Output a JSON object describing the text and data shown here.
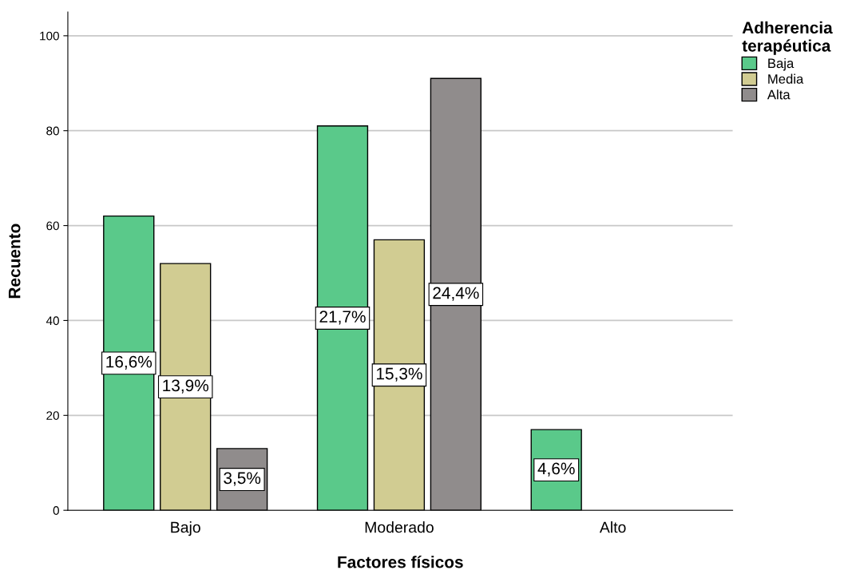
{
  "chart_data": {
    "type": "bar",
    "xlabel": "Factores físicos",
    "ylabel": "Recuento",
    "legend_title": "Adherencia\nterapéutica",
    "categories": [
      "Bajo",
      "Moderado",
      "Alto"
    ],
    "series": [
      {
        "name": "Baja",
        "color": "#5ac98a",
        "values": [
          62,
          81,
          17
        ]
      },
      {
        "name": "Media",
        "color": "#d1cc92",
        "values": [
          52,
          57,
          null
        ]
      },
      {
        "name": "Alta",
        "color": "#908c8c",
        "values": [
          13,
          91,
          null
        ]
      }
    ],
    "annotations": [
      "16,6%",
      "13,9%",
      "3,5%",
      "21,7%",
      "15,3%",
      "24,4%",
      "4,6%"
    ],
    "ylim": [
      0,
      105
    ],
    "yticks": [
      0,
      20,
      40,
      60,
      80,
      100
    ],
    "grid": "y",
    "legend": "top right"
  }
}
